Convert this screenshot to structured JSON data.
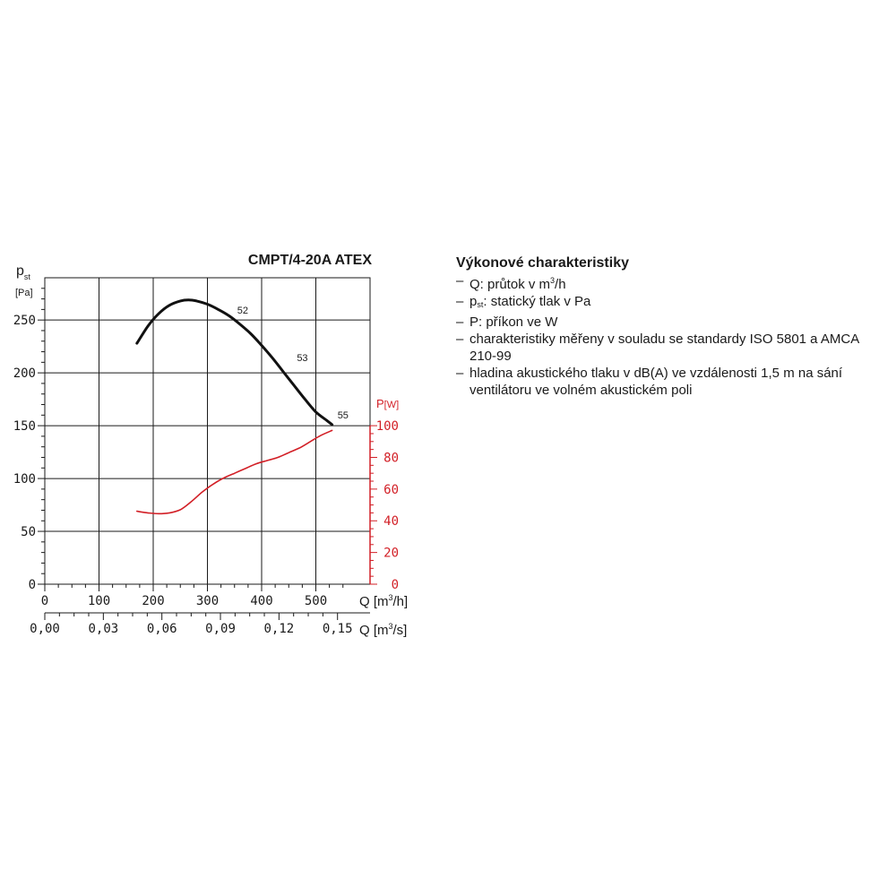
{
  "chart_data": {
    "type": "line",
    "title": "CMPT/4-20A ATEX",
    "y_left": {
      "label_main": "p",
      "label_sub": "st",
      "unit": "[Pa]",
      "range": [
        0,
        290
      ],
      "ticks": [
        "0",
        "50",
        "100",
        "150",
        "200",
        "250"
      ],
      "tick_values": [
        0,
        50,
        100,
        150,
        200,
        250
      ]
    },
    "y_right": {
      "label_main": "P",
      "unit": "[W]",
      "range": [
        0,
        100
      ],
      "ticks": [
        "0",
        "20",
        "40",
        "60",
        "80",
        "100"
      ],
      "tick_values": [
        0,
        20,
        40,
        60,
        80,
        100
      ]
    },
    "x_primary": {
      "label": "Q [m³/h]",
      "label_main": "Q [m",
      "label_sup": "3",
      "label_end": "/h]",
      "range": [
        0,
        600
      ],
      "ticks": [
        "0",
        "100",
        "200",
        "300",
        "400",
        "500"
      ],
      "tick_values": [
        0,
        100,
        200,
        300,
        400,
        500
      ]
    },
    "x_secondary": {
      "label": "Q [m³/s]",
      "label_main": "Q [m",
      "label_sup": "3",
      "label_end": "/s]",
      "ticks": [
        "0,00",
        "0,03",
        "0,06",
        "0,09",
        "0,12",
        "0,15"
      ],
      "tick_values": [
        0,
        0.03,
        0.06,
        0.09,
        0.12,
        0.15
      ]
    },
    "grid": true,
    "series": [
      {
        "axis": "left",
        "color": "#111111",
        "x": [
          170,
          190,
          210,
          230,
          250,
          265,
          280,
          300,
          320,
          340,
          360,
          380,
          400,
          420,
          440,
          460,
          480,
          500,
          520,
          530
        ],
        "y": [
          228,
          244,
          256,
          264,
          268,
          269,
          268,
          265,
          260,
          254,
          246,
          237,
          226,
          214,
          201,
          188,
          175,
          163,
          155,
          151
        ]
      },
      {
        "axis": "right",
        "color": "#d21f26",
        "x": [
          170,
          190,
          210,
          230,
          250,
          270,
          290,
          310,
          330,
          350,
          370,
          390,
          410,
          430,
          450,
          470,
          490,
          510,
          530
        ],
        "y": [
          46,
          45,
          44.5,
          45,
          47,
          52,
          58,
          63,
          67,
          70,
          73,
          76,
          78,
          80,
          83,
          86,
          90,
          94,
          97
        ]
      }
    ],
    "annotations": [
      {
        "text": "52",
        "x": 355,
        "y": 256
      },
      {
        "text": "53",
        "x": 465,
        "y": 211
      },
      {
        "text": "55",
        "x": 540,
        "y": 157
      }
    ]
  },
  "legend": {
    "title": "Výkonové charakteristiky",
    "items": [
      {
        "pre": "Q: průtok v m",
        "sup": "3",
        "post": "/h"
      },
      {
        "pre": "p",
        "sub": "st",
        "post": ": statický tlak v Pa"
      },
      {
        "pre": "P: příkon ve W"
      },
      {
        "pre": "charakteristiky měřeny v souladu se standardy ISO 5801 a AMCA 210-99"
      },
      {
        "pre": "hladina akustického tlaku v dB(A) ve vzdálenosti 1,5 m na sání ventilátoru ve volném akustickém poli"
      }
    ]
  }
}
